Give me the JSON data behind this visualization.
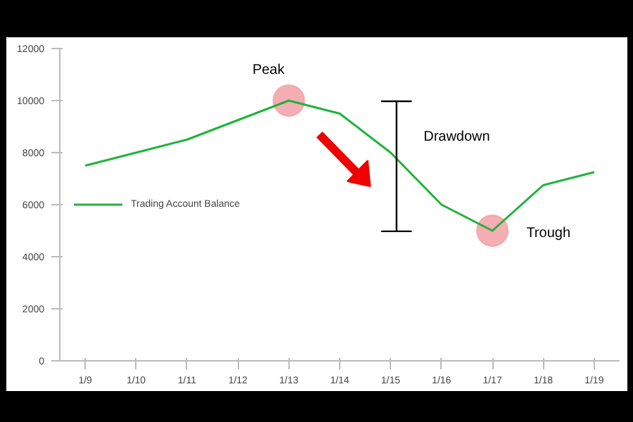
{
  "chart_data": {
    "type": "line",
    "categories": [
      "1/9",
      "1/10",
      "1/11",
      "1/12",
      "1/13",
      "1/14",
      "1/15",
      "1/16",
      "1/17",
      "1/18",
      "1/19"
    ],
    "series": [
      {
        "name": "Trading Account Balance",
        "color": "#1fb33a",
        "values": [
          7500,
          8000,
          8500,
          9250,
          10000,
          9500,
          8000,
          6000,
          5000,
          6750,
          7250
        ]
      }
    ],
    "ylim": [
      0,
      12000
    ],
    "yticks": [
      0,
      2000,
      4000,
      6000,
      8000,
      10000,
      12000
    ],
    "grid": false,
    "legend": "left",
    "marker": "none",
    "line_style": "solid",
    "annotations": [
      "Peak",
      "Drawdown",
      "Trough"
    ]
  }
}
